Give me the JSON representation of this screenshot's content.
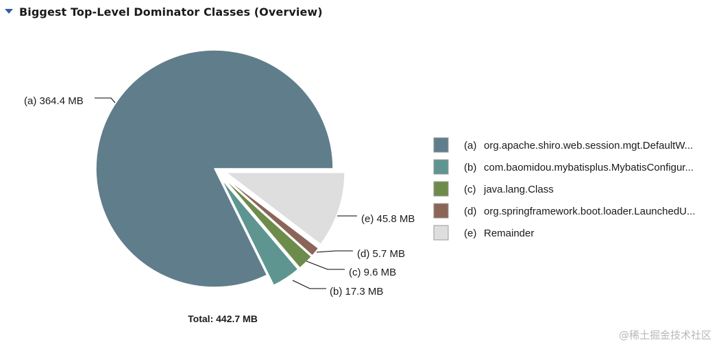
{
  "section": {
    "title": "Biggest Top-Level Dominator Classes (Overview)",
    "toggle_icon": "triangle-down-icon"
  },
  "chart_data": {
    "type": "pie",
    "unit": "MB",
    "slices": [
      {
        "key": "(a)",
        "value": 364.4,
        "label": "364.4 MB",
        "legend": "org.apache.shiro.web.session.mgt.DefaultW...",
        "color": "#607d8b",
        "exploded": false
      },
      {
        "key": "(b)",
        "value": 17.3,
        "label": "17.3 MB",
        "legend": "com.baomidou.mybatisplus.MybatisConfigur...",
        "color": "#5f9590",
        "exploded": true
      },
      {
        "key": "(c)",
        "value": 9.6,
        "label": "9.6 MB",
        "legend": "java.lang.Class",
        "color": "#6d8b4b",
        "exploded": true
      },
      {
        "key": "(d)",
        "value": 5.7,
        "label": "5.7 MB",
        "legend": "org.springframework.boot.loader.LaunchedU...",
        "color": "#8b6558",
        "exploded": true
      },
      {
        "key": "(e)",
        "value": 45.8,
        "label": "45.8 MB",
        "legend": "Remainder",
        "color": "#dedede",
        "exploded": true
      }
    ],
    "total_label": "Total: 442.7 MB",
    "legend_position": "right"
  },
  "watermark": "@稀土掘金技术社区"
}
